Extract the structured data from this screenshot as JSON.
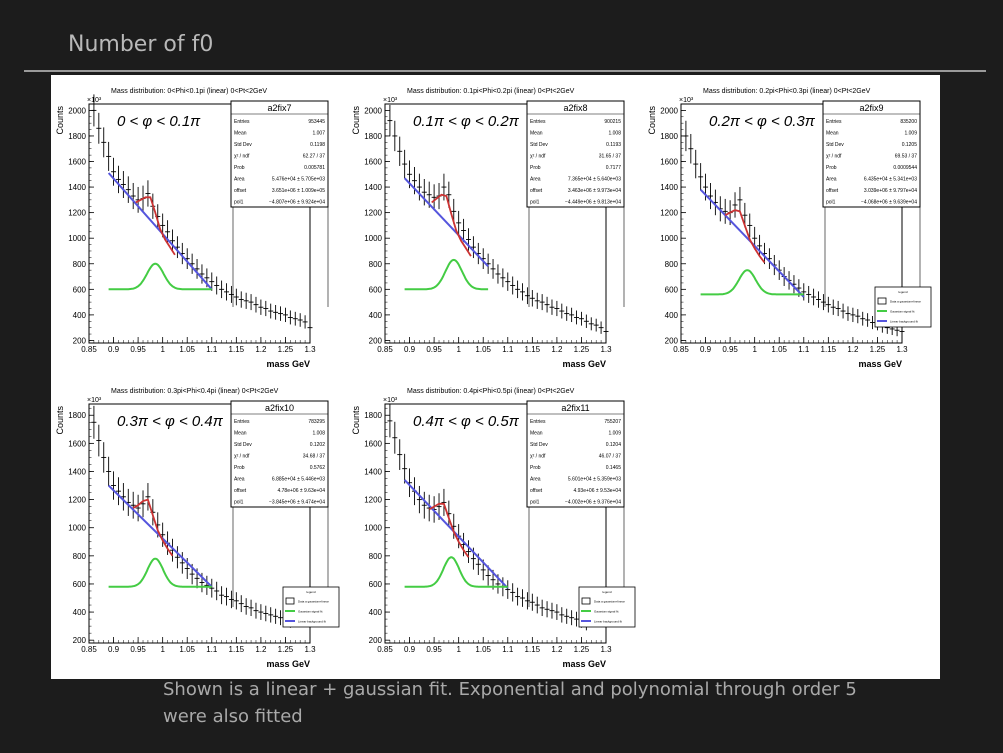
{
  "slide": {
    "title": "Number of f0",
    "caption": "Shown is a linear + gaussian fit. Exponential and polynomial through order 5 were also fitted"
  },
  "colors": {
    "background": "#1c1c1c",
    "fit": "#cc3333",
    "background_line": "#5555dd",
    "gaussian": "#44cc44"
  },
  "common": {
    "x_label": "mass GeV",
    "y_label": "Counts",
    "exponent_label": "×10³",
    "x_ticks": [
      "0.85",
      "0.9",
      "0.95",
      "1",
      "1.05",
      "1.1",
      "1.15",
      "1.2",
      "1.25",
      "1.3"
    ],
    "legend_title": "legend",
    "legend_entries": [
      "Data a gaussian+linear",
      "Gaussian signal fit",
      "Linear background fit"
    ]
  },
  "chart_data": [
    {
      "type": "scatter",
      "title": "Mass distribution: 0<Phi<0.1pi (linear) 0<Pt<2GeV",
      "annotation": "0 < φ < 0.1π",
      "ylabel": "Counts",
      "xlabel": "mass GeV",
      "xlim": [
        0.85,
        1.3
      ],
      "ylim": [
        180,
        2050
      ],
      "y_ticks": [
        200,
        400,
        600,
        800,
        1000,
        1200,
        1400,
        1600,
        1800,
        2000
      ],
      "has_legend": false,
      "stats": {
        "name": "a2fix7",
        "rows": [
          [
            "Entries",
            "953445"
          ],
          [
            "Mean",
            "1.007"
          ],
          [
            "Std Dev",
            "0.1198"
          ],
          [
            "χ² / ndf",
            "62.27 / 37"
          ],
          [
            "Prob",
            "0.005781"
          ],
          [
            "Area",
            "5.476e+04 ± 5.705e+03"
          ],
          [
            "offset",
            "3.651e+06 ± 1.009e+05"
          ],
          [
            "pol1",
            "−4.807e+06 ± 9.924e+04"
          ]
        ]
      },
      "data": {
        "x": [
          0.86,
          0.87,
          0.88,
          0.89,
          0.9,
          0.91,
          0.92,
          0.93,
          0.94,
          0.95,
          0.96,
          0.97,
          0.98,
          0.99,
          1.0,
          1.01,
          1.02,
          1.03,
          1.04,
          1.05,
          1.06,
          1.07,
          1.08,
          1.09,
          1.1,
          1.11,
          1.12,
          1.13,
          1.14,
          1.15,
          1.16,
          1.17,
          1.18,
          1.19,
          1.2,
          1.21,
          1.22,
          1.23,
          1.24,
          1.25,
          1.26,
          1.27,
          1.28,
          1.29,
          1.3
        ],
        "y": [
          2000,
          1860,
          1750,
          1640,
          1520,
          1460,
          1420,
          1380,
          1330,
          1300,
          1310,
          1350,
          1250,
          1170,
          1100,
          1050,
          980,
          930,
          880,
          840,
          800,
          760,
          720,
          690,
          660,
          630,
          600,
          580,
          560,
          540,
          520,
          510,
          500,
          480,
          460,
          450,
          430,
          420,
          410,
          400,
          380,
          370,
          360,
          345,
          300
        ]
      },
      "signal_fit": {
        "x": [
          0.945,
          0.955,
          0.965,
          0.975,
          0.985,
          0.995,
          1.005,
          1.015,
          1.025
        ],
        "y": [
          1280,
          1300,
          1320,
          1320,
          1200,
          1070,
          990,
          930,
          870
        ]
      },
      "background_fit": {
        "x": [
          0.89,
          1.1
        ],
        "y": [
          1510,
          600
        ]
      },
      "gaussian": {
        "mean": 0.985,
        "sigma": 0.017,
        "base": 600,
        "amplitude": 200,
        "range": [
          0.89,
          1.1
        ]
      }
    },
    {
      "type": "scatter",
      "title": "Mass distribution: 0.1pi<Phi<0.2pi (linear) 0<Pt<2GeV",
      "annotation": "0.1π < φ < 0.2π",
      "ylabel": "Counts",
      "xlabel": "mass GeV",
      "xlim": [
        0.85,
        1.3
      ],
      "ylim": [
        180,
        2050
      ],
      "y_ticks": [
        200,
        400,
        600,
        800,
        1000,
        1200,
        1400,
        1600,
        1800,
        2000
      ],
      "has_legend": false,
      "stats": {
        "name": "a2fix8",
        "rows": [
          [
            "Entries",
            "900215"
          ],
          [
            "Mean",
            "1.008"
          ],
          [
            "Std Dev",
            "0.1193"
          ],
          [
            "χ² / ndf",
            "31.65 / 37"
          ],
          [
            "Prob",
            "0.7177"
          ],
          [
            "Area",
            "7.365e+04 ± 5.640e+03"
          ],
          [
            "offset",
            "3.463e+06 ± 9.973e+04"
          ],
          [
            "pol1",
            "−4.449e+06 ± 9.813e+04"
          ]
        ]
      },
      "data": {
        "x": [
          0.86,
          0.87,
          0.88,
          0.89,
          0.9,
          0.91,
          0.92,
          0.93,
          0.94,
          0.95,
          0.96,
          0.97,
          0.98,
          0.99,
          1.0,
          1.01,
          1.02,
          1.03,
          1.04,
          1.05,
          1.06,
          1.07,
          1.08,
          1.09,
          1.1,
          1.11,
          1.12,
          1.13,
          1.14,
          1.15,
          1.16,
          1.17,
          1.18,
          1.19,
          1.2,
          1.21,
          1.22,
          1.23,
          1.24,
          1.25,
          1.26,
          1.27,
          1.28,
          1.29,
          1.3
        ],
        "y": [
          1920,
          1800,
          1680,
          1580,
          1500,
          1450,
          1400,
          1360,
          1340,
          1320,
          1330,
          1400,
          1340,
          1210,
          1120,
          1060,
          990,
          930,
          880,
          840,
          800,
          760,
          720,
          690,
          660,
          630,
          600,
          580,
          550,
          530,
          510,
          500,
          480,
          460,
          450,
          430,
          410,
          400,
          380,
          370,
          350,
          330,
          320,
          300,
          270
        ]
      },
      "signal_fit": {
        "x": [
          0.945,
          0.955,
          0.965,
          0.975,
          0.985,
          0.995,
          1.005,
          1.015,
          1.025
        ],
        "y": [
          1280,
          1310,
          1340,
          1330,
          1190,
          1060,
          980,
          920,
          860
        ]
      },
      "background_fit": {
        "x": [
          0.89,
          1.06
        ],
        "y": [
          1470,
          780
        ]
      },
      "gaussian": {
        "mean": 0.99,
        "sigma": 0.017,
        "base": 600,
        "amplitude": 230,
        "range": [
          0.89,
          1.06
        ]
      }
    },
    {
      "type": "scatter",
      "title": "Mass distribution: 0.2pi<Phi<0.3pi (linear) 0<Pt<2GeV",
      "annotation": "0.2π < φ < 0.3π",
      "ylabel": "Counts",
      "xlabel": "mass GeV",
      "xlim": [
        0.85,
        1.3
      ],
      "ylim": [
        180,
        2050
      ],
      "y_ticks": [
        200,
        400,
        600,
        800,
        1000,
        1200,
        1400,
        1600,
        1800,
        2000
      ],
      "has_legend": true,
      "stats": {
        "name": "a2fix9",
        "rows": [
          [
            "Entries",
            "835200"
          ],
          [
            "Mean",
            "1.009"
          ],
          [
            "Std Dev",
            "0.1205"
          ],
          [
            "χ² / ndf",
            "69.53 / 37"
          ],
          [
            "Prob",
            "0.0009544"
          ],
          [
            "Area",
            "6.435e+04 ± 5.341e+03"
          ],
          [
            "offset",
            "3.039e+06 ± 9.797e+04"
          ],
          [
            "pol1",
            "−4.068e+06 ± 9.639e+04"
          ]
        ]
      },
      "data": {
        "x": [
          0.86,
          0.87,
          0.88,
          0.89,
          0.9,
          0.91,
          0.92,
          0.93,
          0.94,
          0.95,
          0.96,
          0.97,
          0.98,
          0.99,
          1.0,
          1.01,
          1.02,
          1.03,
          1.04,
          1.05,
          1.06,
          1.07,
          1.08,
          1.09,
          1.1,
          1.11,
          1.12,
          1.13,
          1.14,
          1.15,
          1.16,
          1.17,
          1.18,
          1.19,
          1.2,
          1.21,
          1.22,
          1.23,
          1.24,
          1.25,
          1.26,
          1.27,
          1.28,
          1.29,
          1.3
        ],
        "y": [
          1800,
          1700,
          1580,
          1480,
          1400,
          1330,
          1280,
          1230,
          1210,
          1200,
          1260,
          1300,
          1180,
          1100,
          1000,
          940,
          880,
          840,
          790,
          750,
          700,
          670,
          640,
          610,
          580,
          560,
          540,
          520,
          500,
          480,
          460,
          450,
          430,
          410,
          400,
          390,
          370,
          360,
          340,
          330,
          310,
          300,
          290,
          280,
          270
        ]
      },
      "signal_fit": {
        "x": [
          0.94,
          0.95,
          0.96,
          0.97,
          0.98,
          0.99,
          1.0,
          1.01,
          1.02
        ],
        "y": [
          1180,
          1200,
          1220,
          1210,
          1100,
          990,
          920,
          860,
          810
        ]
      },
      "background_fit": {
        "x": [
          0.89,
          1.1
        ],
        "y": [
          1380,
          540
        ]
      },
      "gaussian": {
        "mean": 0.985,
        "sigma": 0.017,
        "base": 560,
        "amplitude": 190,
        "range": [
          0.89,
          1.1
        ]
      }
    },
    {
      "type": "scatter",
      "title": "Mass distribution: 0.3pi<Phi<0.4pi (linear) 0<Pt<2GeV",
      "annotation": "0.3π < φ < 0.4π",
      "ylabel": "Counts",
      "xlabel": "mass GeV",
      "xlim": [
        0.85,
        1.3
      ],
      "ylim": [
        180,
        1880
      ],
      "y_ticks": [
        200,
        400,
        600,
        800,
        1000,
        1200,
        1400,
        1600,
        1800
      ],
      "has_legend": true,
      "stats": {
        "name": "a2fix10",
        "rows": [
          [
            "Entries",
            "783295"
          ],
          [
            "Mean",
            "1.008"
          ],
          [
            "Std Dev",
            "0.1202"
          ],
          [
            "χ² / ndf",
            "34.68 / 37"
          ],
          [
            "Prob",
            "0.5762"
          ],
          [
            "Area",
            "6.885e+04 ± 5.446e+03"
          ],
          [
            "offset",
            "4.78e+06 ± 9.63e+04"
          ],
          [
            "pol1",
            "−3.845e+06 ± 9.474e+04"
          ]
        ]
      },
      "data": {
        "x": [
          0.86,
          0.87,
          0.88,
          0.89,
          0.9,
          0.91,
          0.92,
          0.93,
          0.94,
          0.95,
          0.96,
          0.97,
          0.98,
          0.99,
          1.0,
          1.01,
          1.02,
          1.03,
          1.04,
          1.05,
          1.06,
          1.07,
          1.08,
          1.09,
          1.1,
          1.11,
          1.12,
          1.13,
          1.14,
          1.15,
          1.16,
          1.17,
          1.18,
          1.19,
          1.2,
          1.21,
          1.22,
          1.23,
          1.24,
          1.25,
          1.26
        ],
        "y": [
          1750,
          1620,
          1500,
          1400,
          1300,
          1260,
          1220,
          1180,
          1160,
          1140,
          1170,
          1220,
          1110,
          1020,
          950,
          890,
          840,
          790,
          750,
          710,
          670,
          640,
          610,
          590,
          570,
          550,
          520,
          510,
          490,
          480,
          460,
          440,
          430,
          410,
          400,
          390,
          380,
          370,
          360,
          350,
          340
        ]
      },
      "signal_fit": {
        "x": [
          0.94,
          0.95,
          0.96,
          0.97,
          0.98,
          0.99,
          1.0,
          1.01,
          1.02
        ],
        "y": [
          1140,
          1160,
          1190,
          1200,
          1090,
          980,
          910,
          850,
          800
        ]
      },
      "background_fit": {
        "x": [
          0.89,
          1.1
        ],
        "y": [
          1300,
          580
        ]
      },
      "gaussian": {
        "mean": 0.985,
        "sigma": 0.016,
        "base": 580,
        "amplitude": 200,
        "range": [
          0.89,
          1.1
        ]
      }
    },
    {
      "type": "scatter",
      "title": "Mass distribution: 0.4pi<Phi<0.5pi (linear) 0<Pt<2GeV",
      "annotation": "0.4π < φ < 0.5π",
      "ylabel": "Counts",
      "xlabel": "mass GeV",
      "xlim": [
        0.85,
        1.3
      ],
      "ylim": [
        180,
        1880
      ],
      "y_ticks": [
        200,
        400,
        600,
        800,
        1000,
        1200,
        1400,
        1600,
        1800
      ],
      "has_legend": true,
      "stats": {
        "name": "a2fix11",
        "rows": [
          [
            "Entries",
            "755207"
          ],
          [
            "Mean",
            "1.009"
          ],
          [
            "Std Dev",
            "0.1204"
          ],
          [
            "χ² / ndf",
            "46.07 / 37"
          ],
          [
            "Prob",
            "0.1465"
          ],
          [
            "Area",
            "5.601e+04 ± 5.359e+03"
          ],
          [
            "offset",
            "4.93e+06 ± 9.53e+04"
          ],
          [
            "pol1",
            "−4.002e+06 ± 9.376e+04"
          ]
        ]
      },
      "data": {
        "x": [
          0.86,
          0.87,
          0.88,
          0.89,
          0.9,
          0.91,
          0.92,
          0.93,
          0.94,
          0.95,
          0.96,
          0.97,
          0.98,
          0.99,
          1.0,
          1.01,
          1.02,
          1.03,
          1.04,
          1.05,
          1.06,
          1.07,
          1.08,
          1.09,
          1.1,
          1.11,
          1.12,
          1.13,
          1.14,
          1.15,
          1.16,
          1.17,
          1.18,
          1.19,
          1.2,
          1.21,
          1.22,
          1.23,
          1.24,
          1.25,
          1.26
        ],
        "y": [
          1760,
          1640,
          1520,
          1420,
          1320,
          1260,
          1200,
          1160,
          1140,
          1130,
          1150,
          1180,
          1100,
          1010,
          940,
          880,
          830,
          780,
          740,
          700,
          660,
          630,
          600,
          580,
          560,
          540,
          510,
          500,
          480,
          470,
          450,
          430,
          420,
          410,
          400,
          380,
          370,
          360,
          350,
          340,
          320
        ]
      },
      "signal_fit": {
        "x": [
          0.94,
          0.95,
          0.96,
          0.97,
          0.98,
          0.99,
          1.0,
          1.01,
          1.02
        ],
        "y": [
          1130,
          1150,
          1170,
          1170,
          1070,
          970,
          900,
          840,
          790
        ]
      },
      "background_fit": {
        "x": [
          0.89,
          1.1
        ],
        "y": [
          1340,
          570
        ]
      },
      "gaussian": {
        "mean": 0.985,
        "sigma": 0.016,
        "base": 580,
        "amplitude": 210,
        "range": [
          0.89,
          1.1
        ]
      }
    }
  ]
}
